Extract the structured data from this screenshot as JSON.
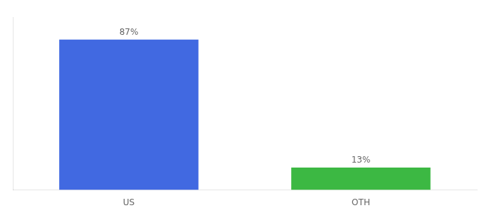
{
  "chart_data": {
    "type": "bar",
    "categories": [
      "US",
      "OTH"
    ],
    "values": [
      87,
      13
    ],
    "colors": [
      "#4169e1",
      "#3cb843"
    ],
    "data_labels": true,
    "value_labels": [
      "87%",
      "13%"
    ],
    "ylim": [
      0,
      100
    ],
    "grid": false,
    "tick_labels": "x"
  }
}
